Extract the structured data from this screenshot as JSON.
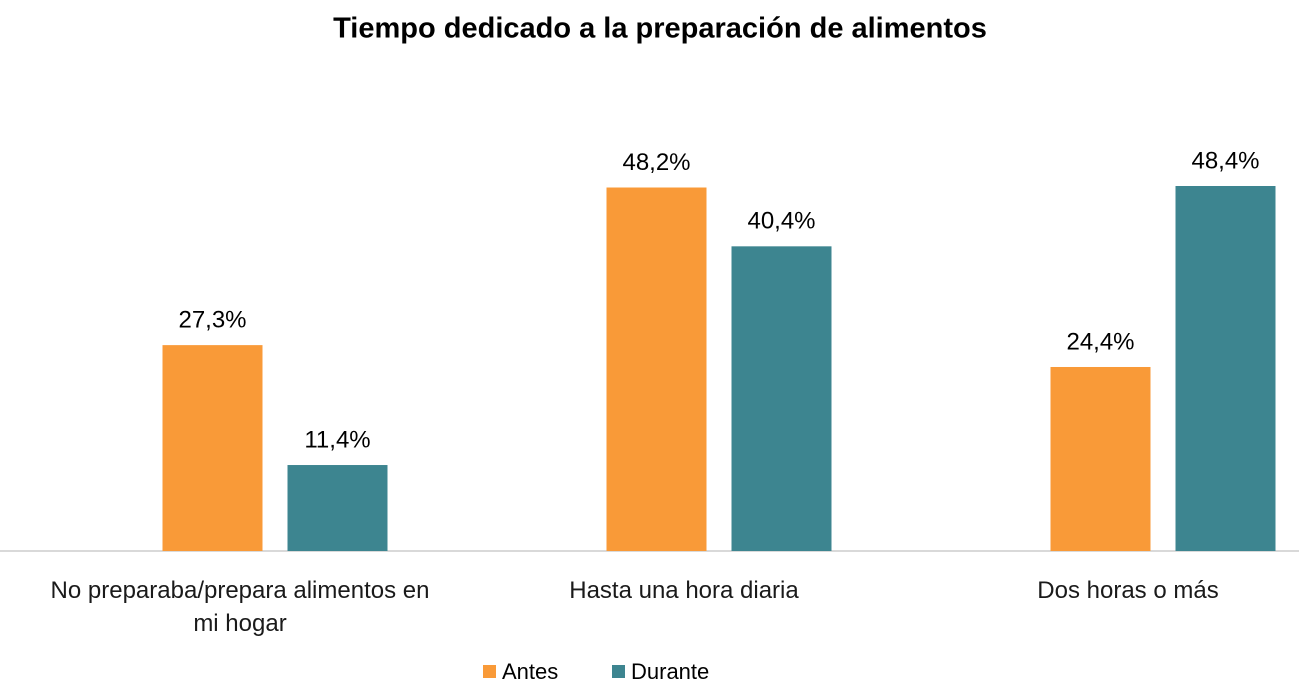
{
  "chart_data": {
    "type": "bar",
    "title": "Tiempo dedicado a la preparación de alimentos",
    "categories": [
      "No preparaba/prepara alimentos en mi hogar",
      "Hasta una hora diaria",
      "Dos horas o más"
    ],
    "series": [
      {
        "name": "Antes",
        "color": "#f99a38",
        "values": [
          27.3,
          48.2,
          24.4
        ],
        "value_labels": [
          "27,3%",
          "48,2%",
          "24,4%"
        ]
      },
      {
        "name": "Durante",
        "color": "#3d8590",
        "values": [
          11.4,
          40.4,
          48.4
        ],
        "value_labels": [
          "11,4%",
          "40,4%",
          "48,4%"
        ]
      }
    ],
    "legend": "bottom"
  }
}
